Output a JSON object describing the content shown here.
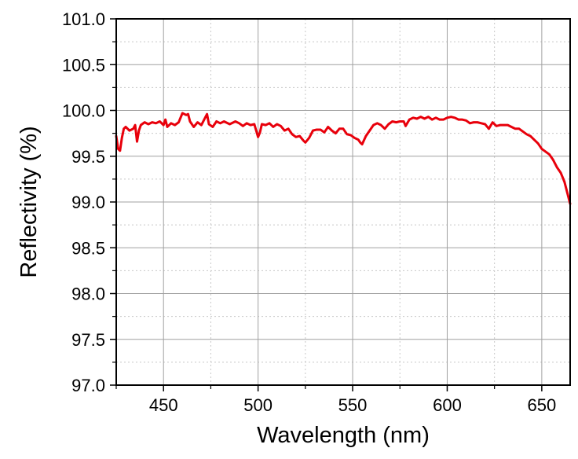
{
  "chart_data": {
    "type": "line",
    "title": "",
    "xlabel": "Wavelength (nm)",
    "ylabel": "Reflectivity (%)",
    "xlim": [
      425,
      665
    ],
    "ylim": [
      97.0,
      101.0
    ],
    "x_major_ticks": [
      450,
      500,
      550,
      600,
      650
    ],
    "x_tick_labels": [
      "450",
      "500",
      "550",
      "600",
      "650"
    ],
    "x_minor_ticks": [
      425,
      475,
      525,
      575,
      625
    ],
    "y_major_ticks": [
      97.0,
      97.5,
      98.0,
      98.5,
      99.0,
      99.5,
      100.0,
      100.5,
      101.0
    ],
    "y_tick_labels": [
      "97.0",
      "97.5",
      "98.0",
      "98.5",
      "99.0",
      "99.5",
      "100.0",
      "100.5",
      "101.0"
    ],
    "grid": true,
    "legend": "none",
    "line_color": "#e8000b",
    "series": [
      {
        "x": [
          425,
          426,
          427,
          428,
          429,
          430,
          432,
          434,
          435,
          436,
          437,
          438,
          440,
          442,
          444,
          446,
          448,
          450,
          451,
          452,
          454,
          456,
          458,
          460,
          462,
          463,
          464,
          466,
          468,
          470,
          472,
          473,
          474,
          476,
          478,
          480,
          482,
          485,
          488,
          490,
          492,
          494,
          496,
          498,
          499,
          500,
          501,
          502,
          504,
          506,
          508,
          510,
          512,
          514,
          516,
          518,
          520,
          522,
          524,
          525,
          527,
          529,
          531,
          533,
          535,
          537,
          539,
          541,
          543,
          545,
          547,
          549,
          551,
          553,
          554,
          555,
          557,
          559,
          561,
          563,
          565,
          567,
          569,
          571,
          573,
          575,
          577,
          578,
          580,
          582,
          584,
          586,
          588,
          590,
          592,
          594,
          596,
          598,
          600,
          602,
          604,
          606,
          608,
          610,
          612,
          614,
          616,
          618,
          620,
          622,
          624,
          626,
          628,
          630,
          632,
          634,
          636,
          638,
          640,
          642,
          644,
          646,
          648,
          650,
          652,
          654,
          656,
          658,
          660,
          662,
          664,
          665
        ],
        "y": [
          99.72,
          99.58,
          99.56,
          99.7,
          99.8,
          99.82,
          99.78,
          99.8,
          99.84,
          99.66,
          99.78,
          99.84,
          99.87,
          99.85,
          99.87,
          99.86,
          99.88,
          99.84,
          99.9,
          99.82,
          99.86,
          99.84,
          99.87,
          99.97,
          99.95,
          99.96,
          99.88,
          99.82,
          99.87,
          99.84,
          99.92,
          99.96,
          99.85,
          99.82,
          99.88,
          99.86,
          99.88,
          99.85,
          99.88,
          99.86,
          99.83,
          99.86,
          99.84,
          99.85,
          99.78,
          99.71,
          99.76,
          99.85,
          99.84,
          99.86,
          99.82,
          99.85,
          99.83,
          99.78,
          99.8,
          99.74,
          99.71,
          99.72,
          99.67,
          99.65,
          99.7,
          99.78,
          99.79,
          99.79,
          99.76,
          99.82,
          99.78,
          99.75,
          99.8,
          99.8,
          99.74,
          99.73,
          99.7,
          99.68,
          99.65,
          99.63,
          99.72,
          99.78,
          99.84,
          99.86,
          99.84,
          99.8,
          99.85,
          99.88,
          99.87,
          99.88,
          99.88,
          99.83,
          99.9,
          99.92,
          99.91,
          99.93,
          99.91,
          99.93,
          99.9,
          99.92,
          99.9,
          99.9,
          99.92,
          99.93,
          99.92,
          99.9,
          99.9,
          99.89,
          99.86,
          99.87,
          99.87,
          99.86,
          99.85,
          99.8,
          99.87,
          99.83,
          99.84,
          99.84,
          99.84,
          99.82,
          99.8,
          99.8,
          99.77,
          99.74,
          99.72,
          99.68,
          99.64,
          99.58,
          99.55,
          99.52,
          99.46,
          99.38,
          99.32,
          99.22,
          99.06,
          98.98
        ]
      }
    ]
  }
}
